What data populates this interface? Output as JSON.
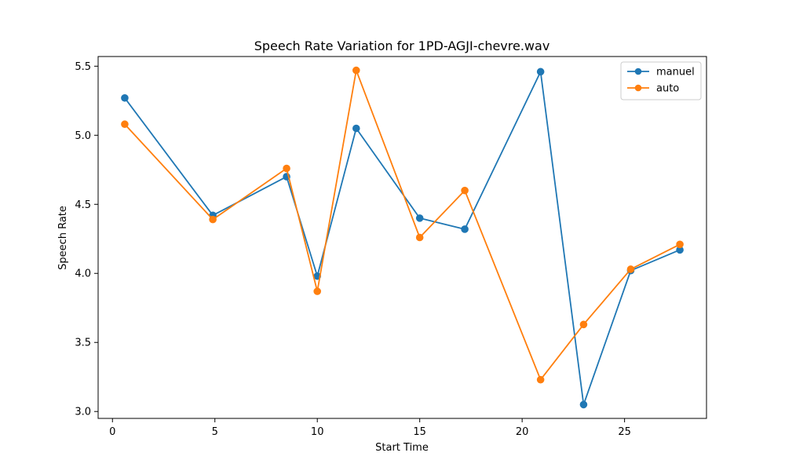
{
  "chart_data": {
    "type": "line",
    "title": "Speech Rate Variation for 1PD-AGJI-chevre.wav",
    "xlabel": "Start Time",
    "ylabel": "Speech Rate",
    "xlim": [
      -0.7,
      29.0
    ],
    "ylim": [
      2.95,
      5.57
    ],
    "xticks": [
      0,
      5,
      10,
      15,
      20,
      25
    ],
    "yticks": [
      3.0,
      3.5,
      4.0,
      4.5,
      5.0,
      5.5
    ],
    "grid": false,
    "legend": "top-right",
    "series": [
      {
        "name": "manuel",
        "color": "#1f77b4",
        "x": [
          0.6,
          4.9,
          8.5,
          10.0,
          11.9,
          15.0,
          17.2,
          20.9,
          23.0,
          25.3,
          27.7
        ],
        "y": [
          5.27,
          4.42,
          4.7,
          3.98,
          5.05,
          4.4,
          4.32,
          5.46,
          3.05,
          4.02,
          4.17
        ]
      },
      {
        "name": "auto",
        "color": "#ff7f0e",
        "x": [
          0.6,
          4.9,
          8.5,
          10.0,
          11.9,
          15.0,
          17.2,
          20.9,
          23.0,
          25.3,
          27.7
        ],
        "y": [
          5.08,
          4.39,
          4.76,
          3.87,
          5.47,
          4.26,
          4.6,
          3.23,
          3.63,
          4.03,
          4.21
        ]
      }
    ]
  }
}
